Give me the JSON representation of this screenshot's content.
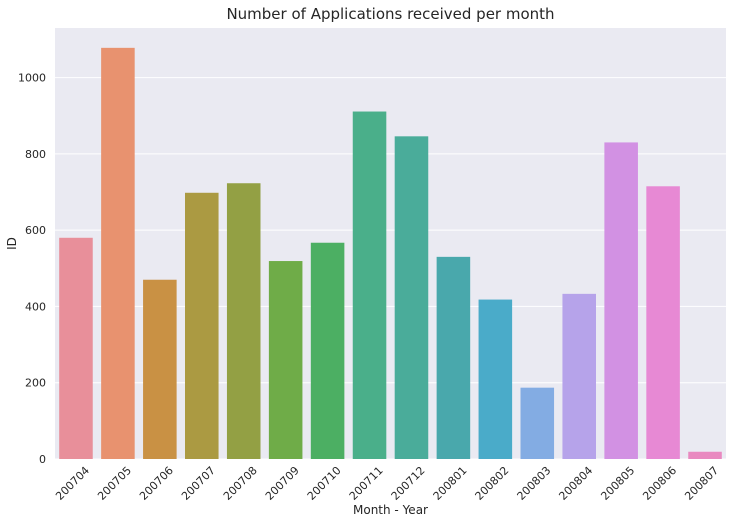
{
  "chart_data": {
    "type": "bar",
    "title": "Number of Applications received per month",
    "xlabel": "Month - Year",
    "ylabel": "ID",
    "ylim": [
      0,
      1130
    ],
    "yticks": [
      0,
      200,
      400,
      600,
      800,
      1000
    ],
    "grid": true,
    "categories": [
      "200704",
      "200705",
      "200706",
      "200707",
      "200708",
      "200709",
      "200710",
      "200711",
      "200712",
      "200801",
      "200802",
      "200803",
      "200804",
      "200805",
      "200806",
      "200807"
    ],
    "values": [
      580,
      1078,
      470,
      698,
      723,
      519,
      567,
      911,
      846,
      530,
      418,
      187,
      433,
      830,
      715,
      19
    ],
    "colors": [
      "#e88f9a",
      "#e8926f",
      "#c99144",
      "#ab9a42",
      "#93a044",
      "#6fac48",
      "#4caf63",
      "#4aaf8a",
      "#4aac9a",
      "#49a8ac",
      "#4aabc9",
      "#83ace3",
      "#b6a3ea",
      "#d291e3",
      "#e789d4",
      "#e989c0"
    ]
  }
}
